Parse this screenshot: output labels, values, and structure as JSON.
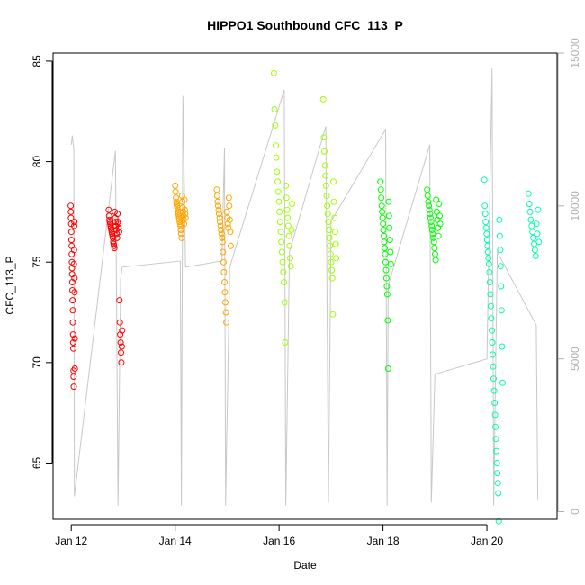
{
  "chart_data": {
    "type": "scatter",
    "title": "HIPPO1 Southbound CFC_113_P",
    "xlabel": "Date",
    "ylabel": "CFC_113_P",
    "x_ticks": [
      "Jan 12",
      "Jan 14",
      "Jan 16",
      "Jan 18",
      "Jan 20"
    ],
    "x_tick_days": [
      12,
      14,
      16,
      18,
      20
    ],
    "xlim": [
      11.65,
      21.35
    ],
    "ylim": [
      62.2,
      85.4
    ],
    "y_ticks": [
      65,
      70,
      75,
      80,
      85
    ],
    "y2lim": [
      -250,
      15000
    ],
    "y2_ticks": [
      0,
      5000,
      10000,
      15000
    ],
    "grid": false,
    "colors": {
      "flight1": "#ff0000",
      "flight2": "#ff0000",
      "flight3": "#ffa500",
      "flight4": "#ffa500",
      "flight5": "#a0ff00",
      "flight6": "#a0ff00",
      "flight7": "#00ff00",
      "flight8": "#00ff00",
      "flight9": "#00ffaa",
      "flight10": "#00ffaa",
      "altitude": "#c8c8c8"
    },
    "series": [
      {
        "color_key": "flight1",
        "day_range": [
          11.99,
          12.07
        ],
        "y": [
          77.8,
          77.5,
          77.2,
          76.9,
          76.5,
          76.1,
          75.8,
          75.4,
          75.0,
          74.7,
          74.4,
          74.0,
          73.6,
          73.1,
          72.6,
          72.0,
          71.4,
          71.0,
          70.7,
          69.6,
          69.3,
          68.8,
          74.9,
          75.6,
          76.8,
          77.0,
          74.2,
          73.5,
          71.2,
          69.7
        ]
      },
      {
        "color_key": "flight2",
        "day_range": [
          12.72,
          12.98
        ],
        "y": [
          77.6,
          77.3,
          77.1,
          77.0,
          76.9,
          76.8,
          76.7,
          76.6,
          76.5,
          76.4,
          76.3,
          76.2,
          76.0,
          75.9,
          75.8,
          75.7,
          77.5,
          77.2,
          77.0,
          76.8,
          76.6,
          76.4,
          76.2,
          77.4,
          77.0,
          76.9,
          76.7,
          76.5,
          73.1,
          72.0,
          71.4,
          71.0,
          70.5,
          70.0,
          70.8,
          71.6
        ]
      },
      {
        "color_key": "flight3",
        "day_range": [
          14.0,
          14.2
        ],
        "y": [
          78.8,
          78.5,
          78.2,
          78.0,
          77.9,
          77.8,
          77.7,
          77.6,
          77.5,
          77.4,
          77.3,
          77.2,
          77.1,
          77.0,
          76.9,
          76.8,
          76.6,
          76.4,
          76.2,
          78.3,
          78.0,
          77.7,
          77.5,
          77.3,
          77.1,
          76.9,
          78.1,
          77.6,
          77.4,
          77.2
        ]
      },
      {
        "color_key": "flight4",
        "day_range": [
          14.8,
          15.07
        ],
        "y": [
          78.6,
          78.3,
          78.0,
          77.8,
          77.6,
          77.4,
          77.2,
          77.0,
          76.8,
          76.6,
          76.4,
          76.2,
          76.0,
          75.5,
          75.0,
          74.5,
          74.0,
          73.5,
          73.0,
          72.5,
          72.0,
          77.5,
          77.2,
          76.9,
          76.7,
          78.2,
          77.8,
          77.1,
          76.5,
          75.8
        ]
      },
      {
        "color_key": "flight5",
        "day_range": [
          15.9,
          16.25
        ],
        "y": [
          84.4,
          82.6,
          81.8,
          80.8,
          80.2,
          79.5,
          79.0,
          78.5,
          78.0,
          77.5,
          77.0,
          76.5,
          76.0,
          75.5,
          75.0,
          74.5,
          74.0,
          73.0,
          71.0,
          78.8,
          78.2,
          77.6,
          77.2,
          76.8,
          76.3,
          75.8,
          75.2,
          74.8,
          76.6,
          77.9
        ]
      },
      {
        "color_key": "flight6",
        "day_range": [
          16.85,
          17.1
        ],
        "y": [
          83.1,
          81.2,
          80.5,
          79.8,
          79.3,
          78.8,
          78.3,
          77.8,
          77.4,
          77.0,
          76.6,
          76.2,
          75.8,
          75.4,
          75.0,
          74.6,
          74.2,
          72.4,
          79.0,
          78.0,
          77.2,
          76.5,
          75.9,
          75.2
        ]
      },
      {
        "color_key": "flight8",
        "day_range": [
          17.95,
          18.15
        ],
        "y": [
          79.0,
          78.6,
          78.2,
          77.8,
          77.5,
          77.2,
          76.9,
          76.6,
          76.3,
          76.0,
          75.7,
          75.4,
          75.0,
          74.6,
          74.2,
          73.8,
          73.4,
          72.1,
          69.7,
          78.0,
          77.3,
          76.7,
          76.1,
          75.5,
          74.9
        ]
      },
      {
        "color_key": "flight8",
        "day_range": [
          18.85,
          19.1
        ],
        "y": [
          78.6,
          78.3,
          78.0,
          77.8,
          77.6,
          77.4,
          77.2,
          77.0,
          76.8,
          76.6,
          76.4,
          76.2,
          76.0,
          75.7,
          75.4,
          75.1,
          78.1,
          77.5,
          77.1,
          76.7,
          76.3,
          77.9,
          77.3,
          76.9
        ]
      },
      {
        "color_key": "flight9",
        "day_range": [
          19.95,
          20.3
        ],
        "y": [
          79.1,
          77.8,
          77.4,
          77.0,
          76.7,
          76.4,
          76.1,
          75.8,
          75.5,
          75.2,
          74.9,
          74.5,
          74.0,
          73.4,
          72.8,
          72.2,
          71.6,
          71.0,
          70.4,
          69.8,
          69.2,
          68.6,
          68.0,
          67.4,
          66.8,
          66.2,
          65.6,
          65.0,
          64.5,
          64.0,
          63.5,
          62.1,
          77.1,
          76.3,
          75.6,
          74.8,
          73.8,
          72.6,
          70.8,
          69.0
        ]
      },
      {
        "color_key": "flight10",
        "day_range": [
          20.8,
          21.0
        ],
        "y": [
          78.4,
          77.9,
          77.5,
          77.1,
          76.8,
          76.5,
          76.2,
          75.9,
          75.6,
          75.3,
          76.9,
          76.4,
          77.6,
          76.0
        ]
      }
    ],
    "altitude_y2": [
      [
        12.0,
        12000
      ],
      [
        12.02,
        12300
      ],
      [
        12.05,
        11800
      ],
      [
        12.06,
        500
      ],
      [
        12.85,
        11800
      ],
      [
        12.87,
        7500
      ],
      [
        12.9,
        200
      ],
      [
        12.95,
        7600
      ],
      [
        12.98,
        8000
      ],
      [
        14.1,
        8200
      ],
      [
        14.12,
        200
      ],
      [
        14.15,
        13600
      ],
      [
        14.2,
        8000
      ],
      [
        14.9,
        8200
      ],
      [
        14.95,
        11900
      ],
      [
        14.97,
        200
      ],
      [
        15.05,
        8000
      ],
      [
        16.1,
        13800
      ],
      [
        16.13,
        200
      ],
      [
        16.2,
        8500
      ],
      [
        16.9,
        12600
      ],
      [
        16.95,
        300
      ],
      [
        17.0,
        9500
      ],
      [
        18.05,
        12500
      ],
      [
        18.08,
        200
      ],
      [
        18.1,
        7400
      ],
      [
        18.9,
        12000
      ],
      [
        18.93,
        300
      ],
      [
        19.0,
        4500
      ],
      [
        20.0,
        5000
      ],
      [
        20.1,
        14500
      ],
      [
        20.13,
        200
      ],
      [
        20.2,
        8500
      ],
      [
        20.95,
        6100
      ],
      [
        20.98,
        400
      ]
    ]
  }
}
